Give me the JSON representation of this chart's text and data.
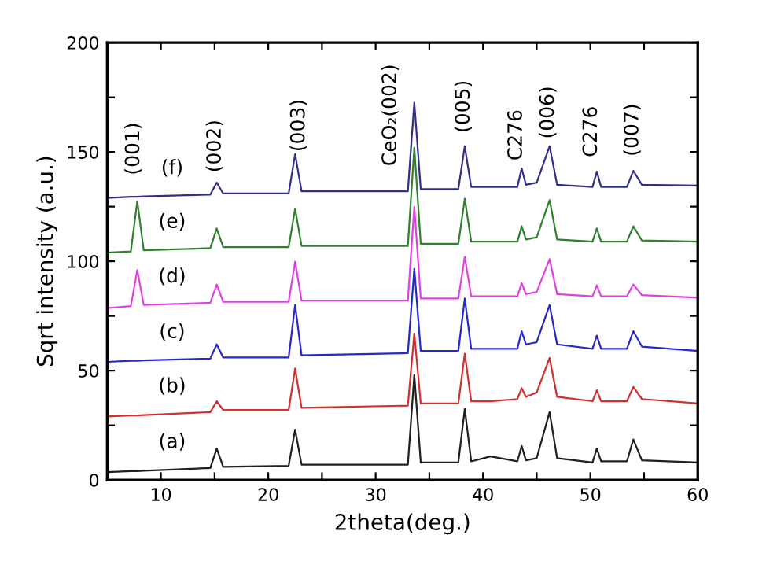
{
  "chart_data": {
    "type": "line",
    "xlabel": "2theta(deg.)",
    "ylabel": "Sqrt intensity (a.u.)",
    "xlim": [
      5,
      60
    ],
    "ylim": [
      0,
      200
    ],
    "xticks": [
      {
        "value": 5,
        "label": null
      },
      10,
      {
        "value": 15,
        "label": null
      },
      20,
      {
        "value": 25,
        "label": null
      },
      30,
      {
        "value": 35,
        "label": null
      },
      40,
      {
        "value": 45,
        "label": null
      },
      50,
      {
        "value": 55,
        "label": null
      },
      60
    ],
    "yticks": [
      0,
      {
        "value": 25,
        "label": null
      },
      50,
      {
        "value": 75,
        "label": null
      },
      100,
      {
        "value": 125,
        "label": null
      },
      150,
      {
        "value": 175,
        "label": null
      },
      200
    ],
    "grid": false,
    "legend": false,
    "marker": "none",
    "line_style": "solid",
    "x": [
      5,
      7.2,
      7.8,
      8.4,
      14.6,
      15.2,
      15.8,
      21.9,
      22.5,
      23.1,
      33.0,
      33.6,
      34.2,
      37.7,
      38.3,
      38.9,
      40.7,
      43.2,
      43.6,
      44.0,
      45.0,
      46.2,
      46.9,
      50.2,
      50.6,
      51.0,
      53.4,
      54.0,
      54.8,
      60
    ],
    "series": [
      {
        "name": "(a)",
        "color": "#202020",
        "values": [
          3.6,
          4,
          4,
          4.2,
          5.5,
          14.4,
          6,
          6.5,
          23,
          7,
          7,
          48,
          8,
          8,
          32.5,
          8.5,
          10.8,
          8.5,
          15.6,
          9,
          10,
          31,
          10,
          8,
          14.4,
          8.5,
          8.5,
          18.5,
          9,
          8
        ]
      },
      {
        "name": "(b)",
        "color": "#d03030",
        "values": [
          29,
          29.5,
          29.5,
          29.7,
          31,
          36,
          32,
          32,
          51,
          33,
          34,
          67,
          35,
          35,
          57.7,
          36,
          36,
          37,
          42,
          38,
          40,
          55.8,
          38,
          36,
          41,
          36,
          36,
          42.5,
          37,
          35
        ]
      },
      {
        "name": "(c)",
        "color": "#2828c8",
        "values": [
          54,
          54.5,
          54.5,
          54.7,
          55.5,
          62,
          56,
          56,
          80,
          57,
          58,
          96.6,
          59,
          59,
          83,
          60,
          60,
          60,
          68,
          62,
          63,
          80,
          62,
          60,
          66,
          60,
          60,
          68,
          61,
          59
        ]
      },
      {
        "name": "(d)",
        "color": "#e040e0",
        "values": [
          78.6,
          79.5,
          96,
          80,
          81,
          89.4,
          81.5,
          81.5,
          99.8,
          82,
          82,
          125,
          83,
          83,
          102,
          84,
          84,
          84,
          90,
          85,
          86,
          101,
          85,
          84,
          89,
          84,
          84,
          89.4,
          84.5,
          83.4
        ]
      },
      {
        "name": "(e)",
        "color": "#308030",
        "values": [
          104,
          104.5,
          127.4,
          105,
          106,
          115,
          106.5,
          106.5,
          124,
          107,
          107,
          152,
          108,
          108,
          128.6,
          109,
          109,
          109,
          116,
          110,
          111,
          128,
          110,
          109,
          115,
          109,
          109,
          116,
          109.5,
          109
        ]
      },
      {
        "name": "(f)",
        "color": "#303088",
        "values": [
          129,
          129.5,
          129.5,
          129.7,
          130.5,
          136,
          131,
          131,
          149,
          132,
          132,
          172.6,
          133,
          133,
          152.6,
          134,
          134,
          134,
          142.5,
          135,
          136,
          152.6,
          135,
          134,
          141,
          134,
          134,
          141.4,
          135,
          134.6
        ]
      }
    ],
    "annotations": [
      "(001)",
      "(002)",
      "(003)",
      "CeO₂(002)",
      "(005)",
      "C276",
      "(006)",
      "C276",
      "(007)"
    ]
  }
}
